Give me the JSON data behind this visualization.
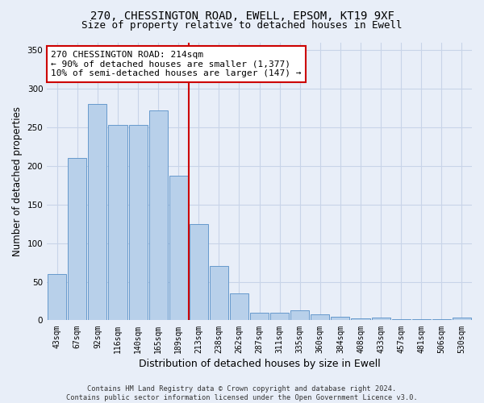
{
  "title_line1": "270, CHESSINGTON ROAD, EWELL, EPSOM, KT19 9XF",
  "title_line2": "Size of property relative to detached houses in Ewell",
  "xlabel": "Distribution of detached houses by size in Ewell",
  "ylabel": "Number of detached properties",
  "categories": [
    "43sqm",
    "67sqm",
    "92sqm",
    "116sqm",
    "140sqm",
    "165sqm",
    "189sqm",
    "213sqm",
    "238sqm",
    "262sqm",
    "287sqm",
    "311sqm",
    "335sqm",
    "360sqm",
    "384sqm",
    "408sqm",
    "433sqm",
    "457sqm",
    "481sqm",
    "506sqm",
    "530sqm"
  ],
  "values": [
    60,
    210,
    280,
    253,
    253,
    272,
    187,
    125,
    70,
    35,
    10,
    10,
    13,
    8,
    5,
    3,
    4,
    1,
    1,
    1,
    4
  ],
  "bar_color": "#b8d0ea",
  "bar_edge_color": "#6699cc",
  "grid_color": "#c8d4e8",
  "background_color": "#e8eef8",
  "red_line_index": 7,
  "red_line_color": "#cc0000",
  "annotation_text": "270 CHESSINGTON ROAD: 214sqm\n← 90% of detached houses are smaller (1,377)\n10% of semi-detached houses are larger (147) →",
  "annotation_box_color": "#ffffff",
  "annotation_box_edge": "#cc0000",
  "ylim": [
    0,
    360
  ],
  "yticks": [
    0,
    50,
    100,
    150,
    200,
    250,
    300,
    350
  ],
  "footnote": "Contains HM Land Registry data © Crown copyright and database right 2024.\nContains public sector information licensed under the Open Government Licence v3.0.",
  "title_fontsize": 10,
  "subtitle_fontsize": 9,
  "axis_label_fontsize": 8.5,
  "tick_fontsize": 7,
  "annotation_fontsize": 8
}
